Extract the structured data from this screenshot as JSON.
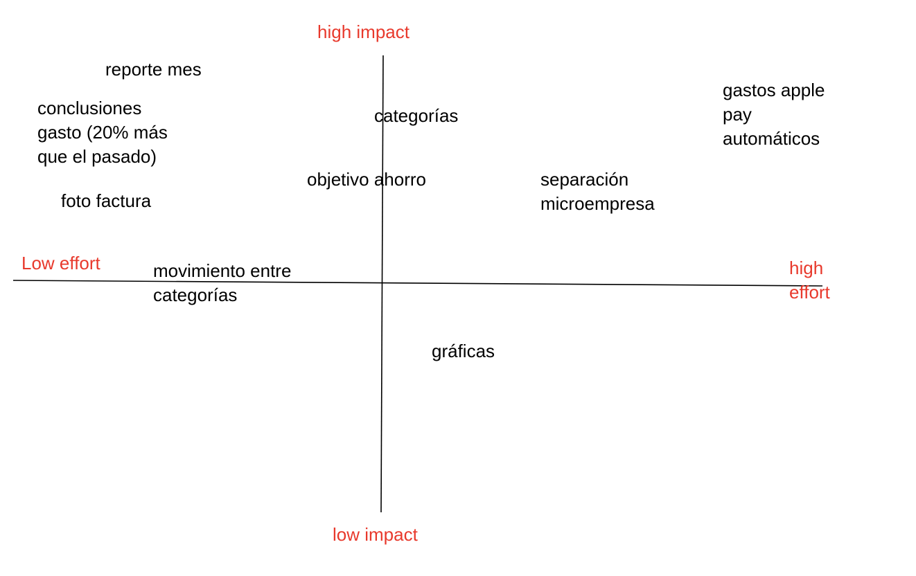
{
  "colors": {
    "axis_label": "#e8392c",
    "item_text": "#000000",
    "axis_line": "#000000",
    "background": "#ffffff"
  },
  "axes": {
    "top": "high impact",
    "bottom": "low impact",
    "left": "Low effort",
    "right": [
      "high",
      "effort"
    ]
  },
  "items": {
    "reporte_mes": [
      "reporte mes"
    ],
    "conclusiones_gasto": [
      "conclusiones",
      "gasto (20% más",
      "que el pasado)"
    ],
    "foto_factura": [
      "foto factura"
    ],
    "categorias": [
      "categorías"
    ],
    "objetivo_ahorro": [
      "objetivo ahorro"
    ],
    "separacion_microempresa": [
      "separación",
      "microempresa"
    ],
    "gastos_apple_pay": [
      "gastos apple",
      "pay",
      "automáticos"
    ],
    "movimiento_entre_categorias": [
      "movimiento entre",
      "categorías"
    ],
    "graficas": [
      "gráficas"
    ]
  }
}
